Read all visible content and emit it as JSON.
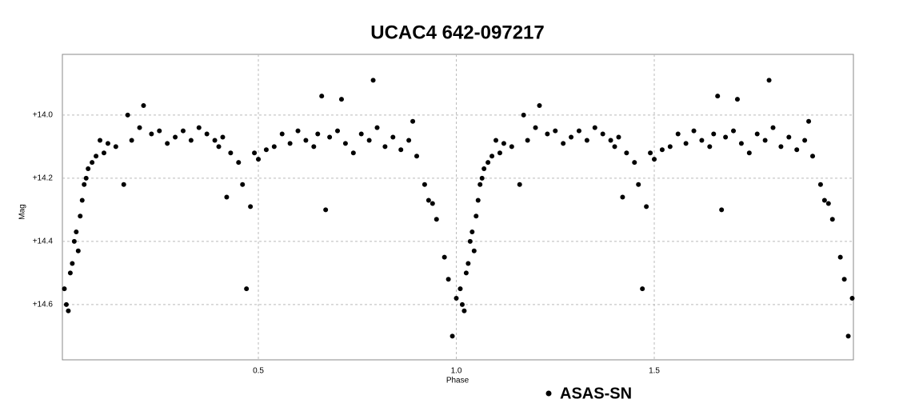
{
  "chart_data": {
    "type": "scatter",
    "title": "UCAC4 642-097217",
    "x_label": "Phase",
    "y_label": "Mag",
    "xlim": [
      0.005,
      2.003
    ],
    "ylim": [
      13.808,
      14.775
    ],
    "y_inverted": true,
    "grid": true,
    "xticks": [
      0.5,
      {
        "value": 1,
        "label": "1.0"
      },
      1.5
    ],
    "yticks": [
      {
        "value": 14.0,
        "label": "+14.0"
      },
      {
        "value": 14.2,
        "label": "+14.2"
      },
      {
        "value": 14.4,
        "label": "+14.4"
      },
      {
        "value": 14.6,
        "label": "+14.6"
      }
    ],
    "legend": "bottom",
    "series": [
      {
        "name": "ASAS-SN",
        "color": "#000000",
        "x": [
          0.01,
          0.015,
          0.02,
          0.025,
          0.03,
          0.035,
          0.04,
          0.045,
          0.05,
          0.055,
          0.06,
          0.065,
          0.07,
          0.08,
          0.09,
          0.1,
          0.11,
          0.12,
          0.14,
          0.16,
          0.17,
          0.18,
          0.2,
          0.21,
          0.23,
          0.25,
          0.27,
          0.29,
          0.31,
          0.33,
          0.35,
          0.37,
          0.39,
          0.4,
          0.41,
          0.42,
          0.43,
          0.45,
          0.46,
          0.47,
          0.48,
          0.49,
          0.5,
          0.52,
          0.54,
          0.56,
          0.58,
          0.6,
          0.62,
          0.64,
          0.65,
          0.66,
          0.67,
          0.68,
          0.7,
          0.71,
          0.72,
          0.74,
          0.76,
          0.78,
          0.79,
          0.8,
          0.82,
          0.84,
          0.86,
          0.88,
          0.89,
          0.9,
          0.92,
          0.93,
          0.94,
          0.95,
          0.97,
          0.98,
          0.99,
          1.0,
          1.01,
          1.015,
          1.02,
          1.025,
          1.03,
          1.035,
          1.04,
          1.045,
          1.05,
          1.055,
          1.06,
          1.065,
          1.07,
          1.08,
          1.09,
          1.1,
          1.11,
          1.12,
          1.14,
          1.16,
          1.17,
          1.18,
          1.2,
          1.21,
          1.23,
          1.25,
          1.27,
          1.29,
          1.31,
          1.33,
          1.35,
          1.37,
          1.39,
          1.4,
          1.41,
          1.42,
          1.43,
          1.45,
          1.46,
          1.47,
          1.48,
          1.49,
          1.5,
          1.52,
          1.54,
          1.56,
          1.58,
          1.6,
          1.62,
          1.64,
          1.65,
          1.66,
          1.67,
          1.68,
          1.7,
          1.71,
          1.72,
          1.74,
          1.76,
          1.78,
          1.79,
          1.8,
          1.82,
          1.84,
          1.86,
          1.88,
          1.89,
          1.9,
          1.92,
          1.93,
          1.94,
          1.95,
          1.97,
          1.98,
          1.99,
          2.0
        ],
        "values": [
          14.55,
          14.6,
          14.62,
          14.5,
          14.47,
          14.4,
          14.37,
          14.43,
          14.32,
          14.27,
          14.22,
          14.2,
          14.17,
          14.15,
          14.13,
          14.08,
          14.12,
          14.09,
          14.1,
          14.22,
          14.0,
          14.08,
          14.04,
          13.97,
          14.06,
          14.05,
          14.09,
          14.07,
          14.05,
          14.08,
          14.04,
          14.06,
          14.08,
          14.1,
          14.07,
          14.26,
          14.12,
          14.15,
          14.22,
          14.55,
          14.29,
          14.12,
          14.14,
          14.11,
          14.1,
          14.06,
          14.09,
          14.05,
          14.08,
          14.1,
          14.06,
          13.94,
          14.3,
          14.07,
          14.05,
          13.95,
          14.09,
          14.12,
          14.06,
          14.08,
          13.89,
          14.04,
          14.1,
          14.07,
          14.11,
          14.08,
          14.02,
          14.13,
          14.22,
          14.27,
          14.28,
          14.33,
          14.45,
          14.52,
          14.7,
          14.58,
          14.55,
          14.6,
          14.62,
          14.5,
          14.47,
          14.4,
          14.37,
          14.43,
          14.32,
          14.27,
          14.22,
          14.2,
          14.17,
          14.15,
          14.13,
          14.08,
          14.12,
          14.09,
          14.1,
          14.22,
          14.0,
          14.08,
          14.04,
          13.97,
          14.06,
          14.05,
          14.09,
          14.07,
          14.05,
          14.08,
          14.04,
          14.06,
          14.08,
          14.1,
          14.07,
          14.26,
          14.12,
          14.15,
          14.22,
          14.55,
          14.29,
          14.12,
          14.14,
          14.11,
          14.1,
          14.06,
          14.09,
          14.05,
          14.08,
          14.1,
          14.06,
          13.94,
          14.3,
          14.07,
          14.05,
          13.95,
          14.09,
          14.12,
          14.06,
          14.08,
          13.89,
          14.04,
          14.1,
          14.07,
          14.11,
          14.08,
          14.02,
          14.13,
          14.22,
          14.27,
          14.28,
          14.33,
          14.45,
          14.52,
          14.7,
          14.58
        ]
      }
    ]
  }
}
